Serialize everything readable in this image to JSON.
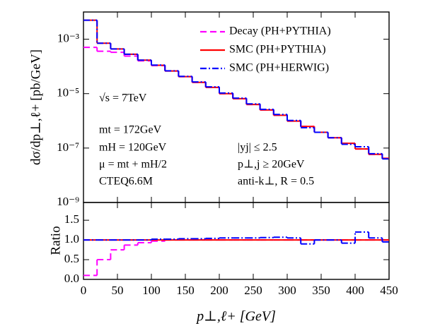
{
  "chart_data": [
    {
      "type": "histogram",
      "log": true,
      "ylabel": "dσ/dp⊥,ℓ+ [pb/GeV]",
      "bins": [
        0,
        20,
        40,
        60,
        80,
        100,
        120,
        140,
        160,
        180,
        200,
        220,
        240,
        260,
        280,
        300,
        320,
        340,
        360,
        380,
        400,
        420,
        440,
        450
      ],
      "xlim": [
        0,
        450
      ],
      "ylim": [
        1e-09,
        0.01
      ],
      "yticks": [
        {
          "value": 0.001,
          "label": "10⁻³"
        },
        {
          "value": 1e-05,
          "label": "10⁻⁵"
        },
        {
          "value": 1e-07,
          "label": "10⁻⁷"
        },
        {
          "value": 1e-09,
          "label": "10⁻⁹"
        }
      ],
      "legend": "upper right",
      "series": [
        {
          "name": "Decay (PH+PYTHIA)",
          "color": "#ff00ff",
          "style": "dashed",
          "values": [
            0.0005,
            0.00036,
            0.00033,
            0.00024,
            0.00016,
            0.000107,
            6.8e-05,
            4.2e-05,
            2.6e-05,
            1.7e-05,
            1e-05,
            6.5e-06,
            4e-06,
            2.5e-06,
            1.6e-06,
            9.8e-07,
            6.2e-07,
            3.8e-07,
            2.4e-07,
            1.5e-07,
            9.3e-08,
            5.9e-08,
            4.2e-08
          ]
        },
        {
          "name": "SMC (PH+PYTHIA)",
          "color": "#ff0000",
          "style": "solid",
          "values": [
            0.005,
            0.00071,
            0.00044,
            0.00028,
            0.00017,
            0.00011,
            6.8e-05,
            4.2e-05,
            2.6e-05,
            1.7e-05,
            1e-05,
            6.5e-06,
            4e-06,
            2.5e-06,
            1.6e-06,
            9.8e-07,
            6.2e-07,
            3.8e-07,
            2.4e-07,
            1.5e-07,
            9.3e-08,
            5.9e-08,
            4.2e-08
          ]
        },
        {
          "name": "SMC (PH+HERWIG)",
          "color": "#0000ff",
          "style": "dashdot",
          "values": [
            0.005,
            0.00071,
            0.00044,
            0.00028,
            0.00017,
            0.000112,
            6.9e-05,
            4.3e-05,
            2.7e-05,
            1.77e-05,
            1.05e-05,
            6.8e-06,
            4.2e-06,
            2.65e-06,
            1.71e-06,
            1.03e-06,
            5.6e-07,
            3.8e-07,
            2.4e-07,
            1.38e-07,
            1.12e-07,
            6.2e-08,
            4e-08
          ]
        }
      ],
      "annotations": [
        "√s = 7TeV",
        "mt = 172GeV",
        "mH = 120GeV",
        "μ = mt + mH/2",
        "CTEQ6.6M",
        "|yj| ≤ 2.5",
        "p⊥,j ≥ 20GeV",
        "anti-k⊥, R = 0.5"
      ]
    },
    {
      "type": "histogram",
      "log": false,
      "ylabel": "Ratio",
      "xlabel": "p⊥,ℓ+ [GeV]",
      "bins": [
        0,
        20,
        40,
        60,
        80,
        100,
        120,
        140,
        160,
        180,
        200,
        220,
        240,
        260,
        280,
        300,
        320,
        340,
        360,
        380,
        400,
        420,
        440,
        450
      ],
      "xlim": [
        0,
        450
      ],
      "xticks": [
        0,
        50,
        100,
        150,
        200,
        250,
        300,
        350,
        400,
        450
      ],
      "ylim": [
        0,
        1.95
      ],
      "yticks": [
        {
          "value": 0,
          "label": "0.0"
        },
        {
          "value": 0.5,
          "label": "0.5"
        },
        {
          "value": 1,
          "label": "1.0"
        },
        {
          "value": 1.5,
          "label": "1.5"
        }
      ],
      "series": [
        {
          "name": "Decay (PH+PYTHIA)",
          "color": "#ff00ff",
          "style": "dashed",
          "values": [
            0.1,
            0.5,
            0.75,
            0.87,
            0.93,
            0.97,
            1,
            1,
            1,
            1,
            1,
            1,
            1,
            1,
            1,
            1,
            1,
            1,
            1,
            1,
            1,
            1,
            1
          ]
        },
        {
          "name": "SMC (PH+PYTHIA)",
          "color": "#ff0000",
          "style": "solid",
          "values": [
            1,
            1,
            1,
            1,
            1,
            1,
            1,
            1,
            1,
            1,
            1,
            1,
            1,
            1,
            1,
            1,
            1,
            1,
            1,
            1,
            1,
            1,
            1
          ]
        },
        {
          "name": "SMC (PH+HERWIG)",
          "color": "#0000ff",
          "style": "dashdot",
          "values": [
            1,
            1,
            1,
            1,
            1,
            1.02,
            1.02,
            1.03,
            1.03,
            1.04,
            1.05,
            1.05,
            1.05,
            1.06,
            1.07,
            1.05,
            0.9,
            1,
            1,
            0.92,
            1.2,
            1.05,
            0.95
          ]
        }
      ]
    }
  ]
}
